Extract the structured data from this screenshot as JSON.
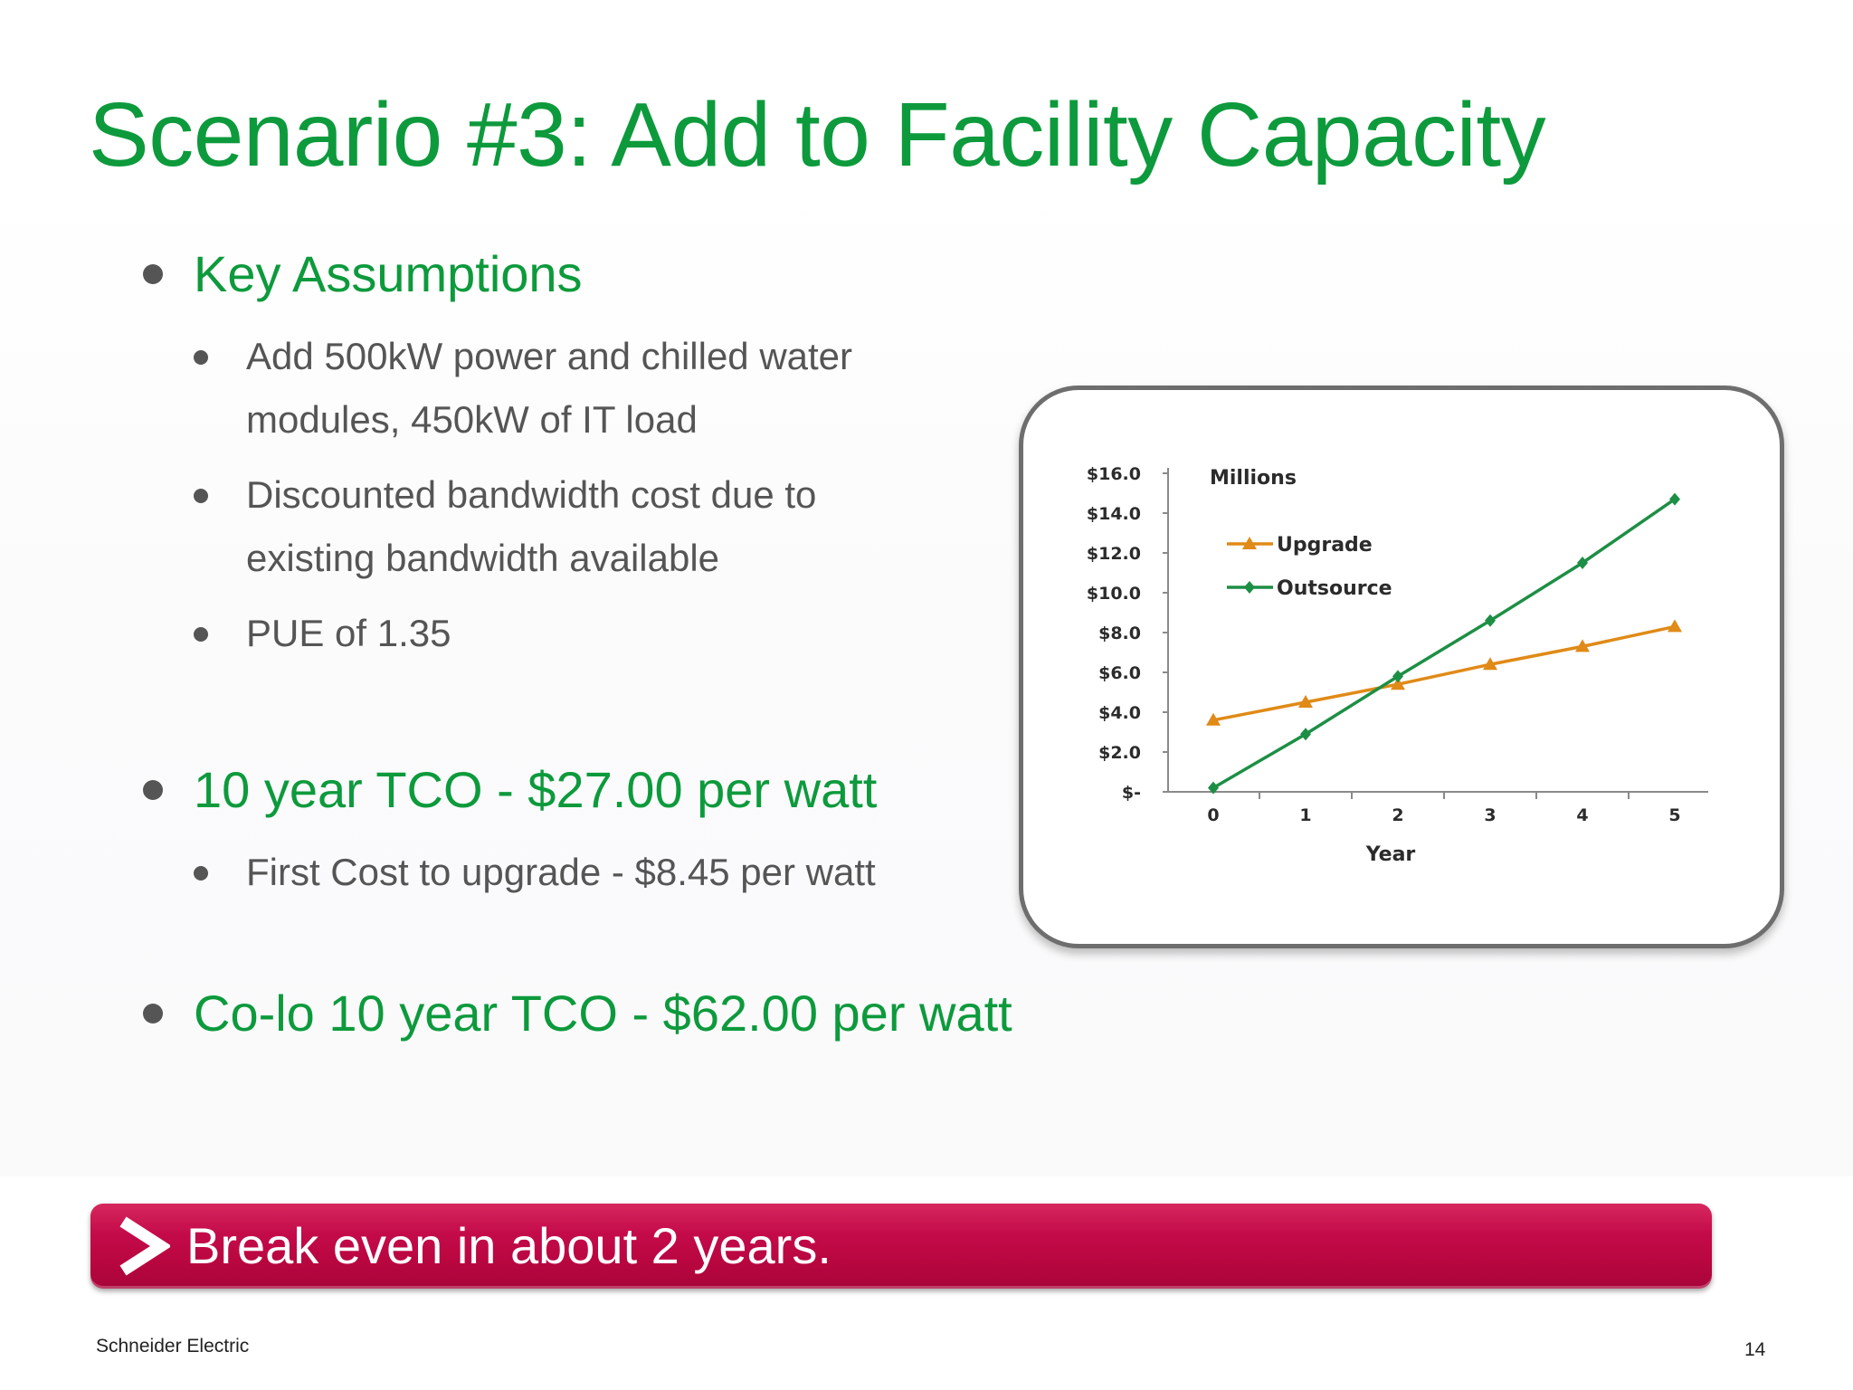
{
  "title": "Scenario #3:  Add to Facility Capacity",
  "bullets": {
    "key_assumptions": "Key Assumptions",
    "assumption_1_line1": "Add 500kW power and chilled water",
    "assumption_1_line2": "modules, 450kW of IT load",
    "assumption_2_line1": "Discounted bandwidth cost due to",
    "assumption_2_line2": "existing bandwidth available",
    "assumption_3": "PUE of 1.35",
    "tco": "10 year TCO - $27.00 per watt",
    "first_cost": "First Cost to upgrade - $8.45 per watt",
    "colo_tco": "Co-lo 10 year TCO - $62.00 per watt"
  },
  "banner": {
    "text": "Break even in about  2 years.",
    "color": "#c40b4a",
    "icon": "chevron-right-icon"
  },
  "footer": {
    "company": "Schneider Electric",
    "page_number": "14"
  },
  "colors": {
    "title_green": "#0d9a3c",
    "body_gray": "#555555",
    "upgrade_series": "#e08a17",
    "outsource_series": "#1d8f45"
  },
  "chart_data": {
    "type": "line",
    "unit_label": "Millions",
    "xlabel": "Year",
    "ylabel": "",
    "x": [
      0,
      1,
      2,
      3,
      4,
      5
    ],
    "y_tick_labels": [
      "$-",
      "$2.0",
      "$4.0",
      "$6.0",
      "$8.0",
      "$10.0",
      "$12.0",
      "$14.0",
      "$16.0"
    ],
    "ylim": [
      0,
      16
    ],
    "legend_position": "top-left",
    "series": [
      {
        "name": "Upgrade",
        "values": [
          3.6,
          4.5,
          5.4,
          6.4,
          7.3,
          8.3
        ],
        "color": "#e08a17",
        "marker": "triangle"
      },
      {
        "name": "Outsource",
        "values": [
          0.2,
          2.9,
          5.8,
          8.6,
          11.5,
          14.7
        ],
        "color": "#1d8f45",
        "marker": "diamond"
      }
    ]
  }
}
